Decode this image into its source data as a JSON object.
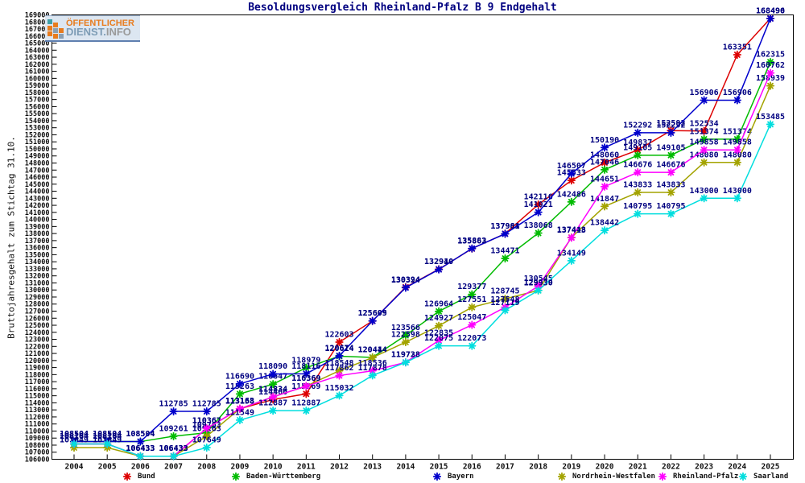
{
  "logo": {
    "line1": "ÖFFENTLICHER",
    "line2_part1": "DIENST.",
    "line2_part2": "INFO"
  },
  "title": "Besoldungsvergleich Rheinland-Pfalz B 9 Endgehalt",
  "chart_data": {
    "type": "line",
    "title": "Besoldungsvergleich Rheinland-Pfalz B 9 Endgehalt",
    "xlabel": "",
    "ylabel": "Bruttojahresgehalt zum Stichtag 31.10.",
    "ylim": [
      106000,
      169000
    ],
    "ytick_step": 1000,
    "grid": false,
    "legend_position": "bottom",
    "marker": "star",
    "point_labels": true,
    "label_color": "#000080",
    "x": [
      2004,
      2005,
      2006,
      2007,
      2008,
      2009,
      2010,
      2011,
      2012,
      2013,
      2014,
      2015,
      2016,
      2017,
      2018,
      2019,
      2020,
      2021,
      2022,
      2023,
      2024,
      2025
    ],
    "series": [
      {
        "name": "Bund",
        "color": "#dd0000",
        "values": [
          108164,
          108164,
          106433,
          106433,
          110367,
          113163,
          114466,
          115269,
          122603,
          125605,
          130394,
          132940,
          135862,
          137984,
          142116,
          145533,
          148060,
          149837,
          152592,
          152534,
          163351,
          168496
        ]
      },
      {
        "name": "Baden-Württemberg",
        "color": "#00bb00",
        "values": [
          108504,
          108504,
          108504,
          109261,
          109763,
          115263,
          116647,
          118979,
          120614,
          120444,
          123566,
          126964,
          129377,
          134471,
          138068,
          142486,
          147046,
          149105,
          149105,
          151374,
          151374,
          162315
        ]
      },
      {
        "name": "Bayern",
        "color": "#0000cc",
        "values": [
          108504,
          108504,
          108504,
          112785,
          112785,
          116690,
          118090,
          118116,
          120674,
          125609,
          130324,
          132910,
          135883,
          137961,
          141021,
          146507,
          150190,
          152292,
          152292,
          156906,
          156906,
          168490
        ]
      },
      {
        "name": "Nordrhein-Westfalen",
        "color": "#a3a300",
        "values": [
          107649,
          107649,
          106433,
          106433,
          109263,
          113163,
          114834,
          116369,
          118548,
          120414,
          122598,
          124927,
          127551,
          128745,
          129939,
          137448,
          141847,
          143833,
          143833,
          148080,
          148080,
          158939
        ]
      },
      {
        "name": "Rheinland-Pfalz",
        "color": "#ff00ff",
        "values": [
          108164,
          108164,
          106433,
          106433,
          110367,
          113158,
          114834,
          116369,
          117862,
          118536,
          119738,
          122835,
          125047,
          127548,
          130545,
          137413,
          144651,
          146676,
          146676,
          149858,
          149858,
          160762
        ]
      },
      {
        "name": "Saarland",
        "color": "#00dede",
        "values": [
          108164,
          108164,
          106433,
          106433,
          107649,
          111549,
          112887,
          112887,
          115032,
          117878,
          119728,
          122075,
          122073,
          127119,
          129930,
          134149,
          138442,
          140795,
          140795,
          143000,
          143000,
          153485
        ]
      }
    ]
  }
}
